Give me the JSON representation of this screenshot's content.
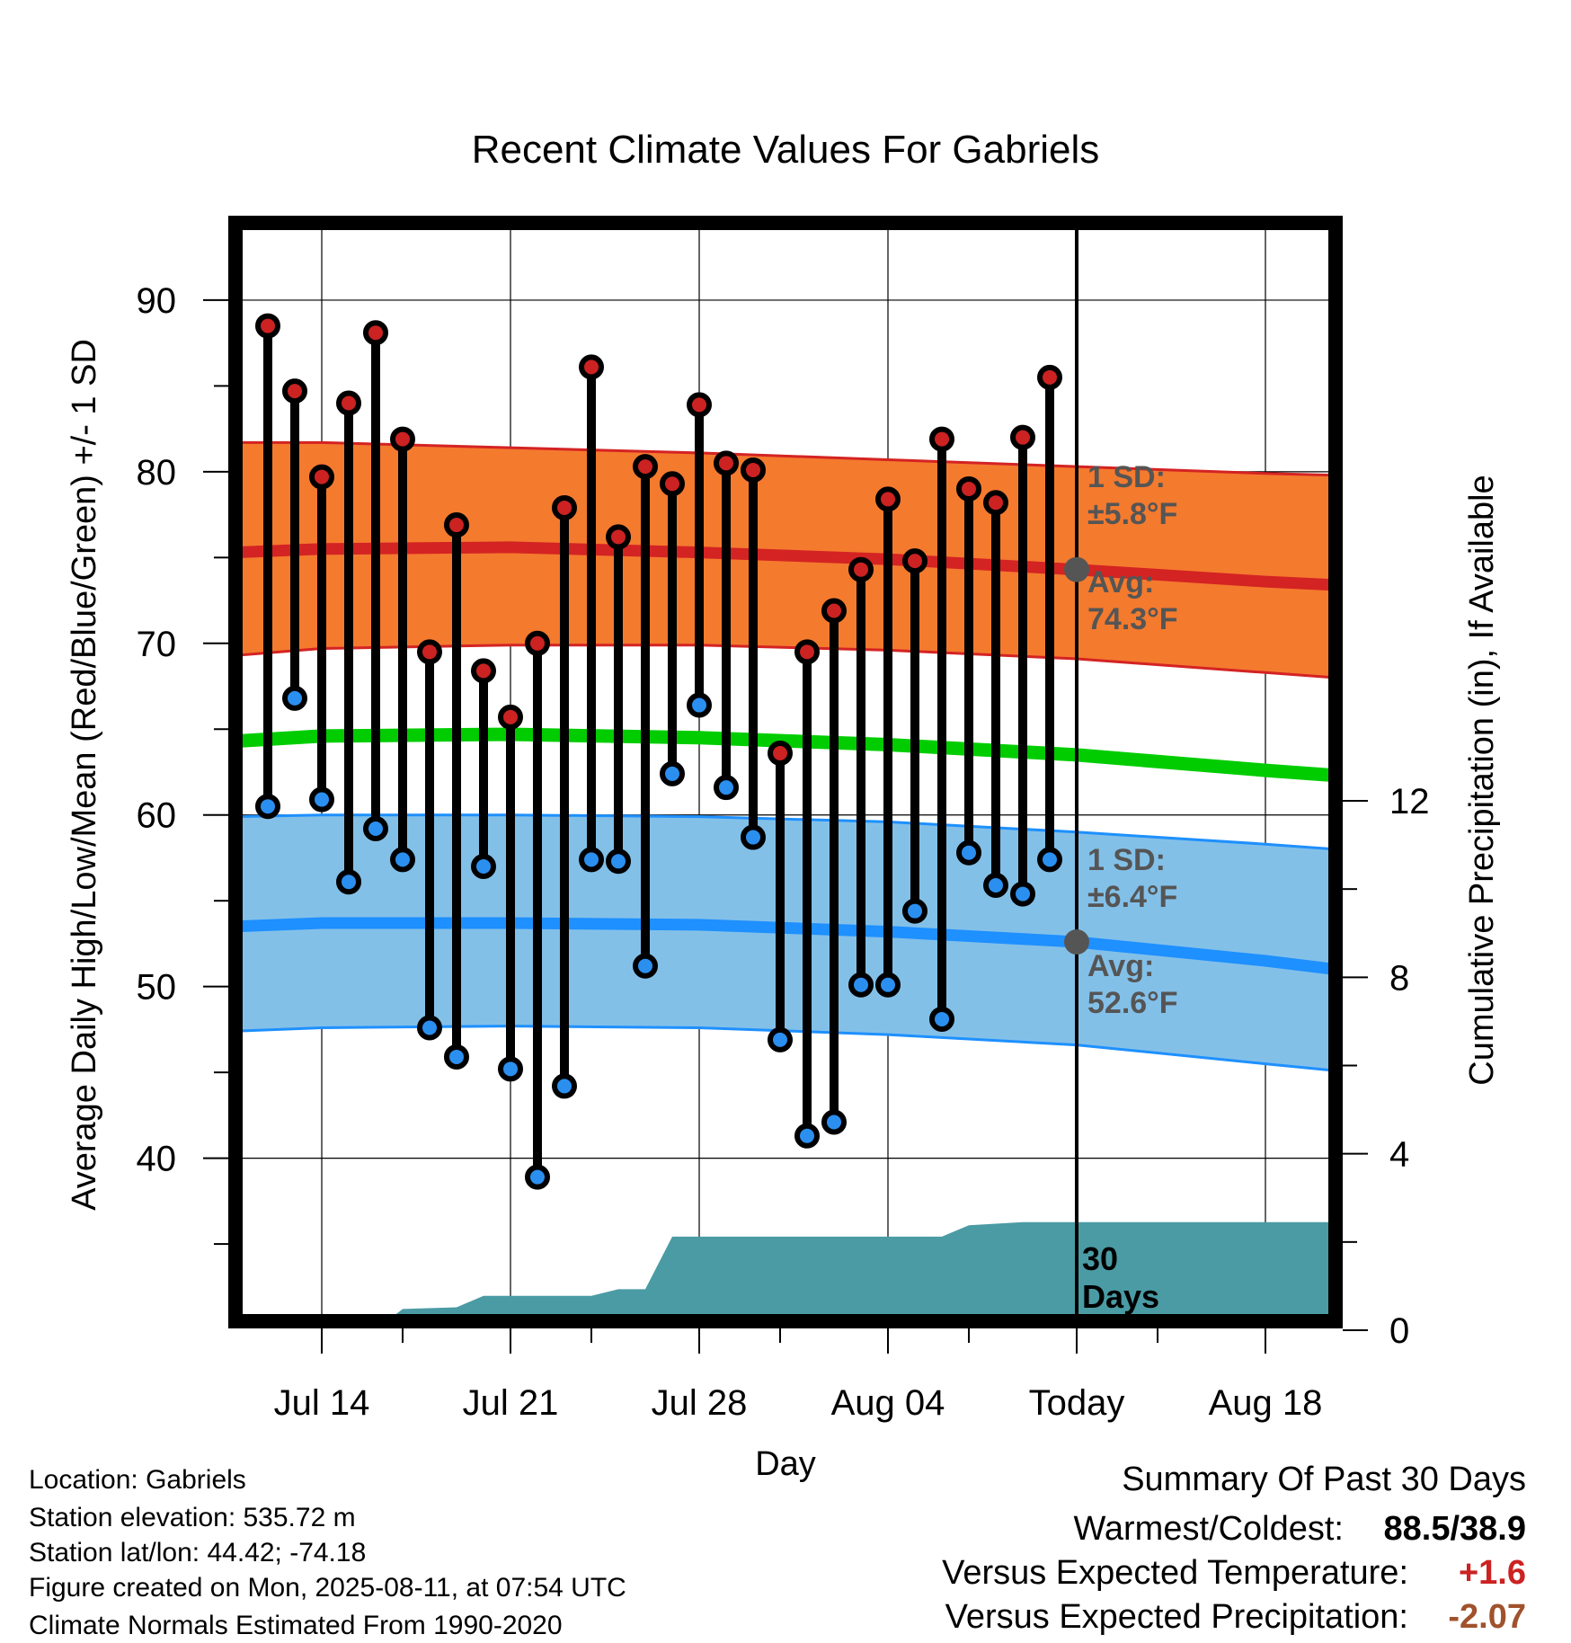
{
  "chart_data": {
    "type": "line",
    "title": "Recent Climate Values For Gabriels",
    "xlabel": "Day",
    "ylabel": "Average Daily High/Low/Mean (Red/Blue/Green) +/- 1 SD",
    "y2label": "Cumulative Precipitation (in), If Available",
    "ylim": [
      30.5,
      94.5
    ],
    "y2lim": [
      0,
      12
    ],
    "y_ticks": [
      "40",
      "50",
      "60",
      "70",
      "80",
      "90"
    ],
    "y2_ticks": [
      "0",
      "4",
      "8",
      "12"
    ],
    "x_ticks": [
      {
        "label": "Jul 14",
        "day": 0
      },
      {
        "label": "Jul 21",
        "day": 7
      },
      {
        "label": "Jul 28",
        "day": 14
      },
      {
        "label": "Aug 04",
        "day": 21
      },
      {
        "label": "Today",
        "day": 28
      },
      {
        "label": "Aug 18",
        "day": 35
      }
    ],
    "x_range_days": [
      -3.2,
      37.6
    ],
    "today_day": 28,
    "observed": {
      "days": [
        -2,
        -1,
        0,
        1,
        2,
        3,
        4,
        5,
        6,
        7,
        8,
        9,
        10,
        11,
        12,
        13,
        14,
        15,
        16,
        17,
        18,
        19,
        20,
        21,
        22,
        23,
        24,
        25,
        26,
        27
      ],
      "high": [
        88.5,
        84.7,
        79.7,
        84.0,
        88.1,
        81.9,
        69.5,
        76.9,
        68.4,
        65.7,
        70.0,
        77.9,
        86.1,
        76.2,
        80.3,
        79.3,
        83.9,
        80.5,
        80.1,
        63.6,
        69.5,
        71.9,
        74.3,
        78.4,
        74.8,
        81.9,
        79.0,
        78.2,
        82.0,
        85.5
      ],
      "low": [
        60.5,
        66.8,
        60.9,
        56.1,
        59.2,
        57.4,
        47.6,
        45.9,
        57.0,
        45.2,
        38.9,
        44.2,
        57.4,
        57.3,
        51.2,
        62.4,
        66.4,
        61.6,
        58.7,
        46.9,
        41.3,
        42.1,
        50.1,
        50.1,
        54.4,
        48.1,
        57.8,
        55.9,
        55.4,
        57.4
      ]
    },
    "normals": {
      "days": [
        -3.2,
        0,
        7,
        14,
        21,
        28,
        35,
        37.6
      ],
      "high_avg": [
        75.3,
        75.5,
        75.6,
        75.3,
        74.9,
        74.3,
        73.6,
        73.4
      ],
      "high_upper": [
        81.7,
        81.7,
        81.4,
        81.1,
        80.7,
        80.3,
        79.9,
        79.8
      ],
      "high_lower": [
        69.3,
        69.7,
        69.9,
        69.9,
        69.6,
        69.1,
        68.3,
        68.0
      ],
      "mean_avg": [
        64.3,
        64.6,
        64.7,
        64.5,
        64.1,
        63.5,
        62.6,
        62.3
      ],
      "low_avg": [
        53.5,
        53.7,
        53.7,
        53.6,
        53.2,
        52.6,
        51.5,
        51.0
      ],
      "low_upper": [
        59.9,
        60.0,
        60.0,
        59.9,
        59.6,
        59.0,
        58.3,
        58.0
      ],
      "low_lower": [
        47.4,
        47.6,
        47.7,
        47.6,
        47.2,
        46.6,
        45.5,
        45.1
      ]
    },
    "precip": {
      "days": [
        -3.2,
        2,
        3,
        5,
        6,
        8,
        10,
        11,
        12,
        13,
        14,
        16,
        18,
        20,
        22,
        23,
        24,
        26,
        28,
        37.6
      ],
      "cumulative": [
        0,
        0,
        0.48,
        0.52,
        0.78,
        0.78,
        0.78,
        0.93,
        0.93,
        2.12,
        2.12,
        2.12,
        2.12,
        2.12,
        2.12,
        2.12,
        2.38,
        2.45,
        2.45,
        2.45
      ]
    },
    "colors": {
      "high_band": "#f47a2e",
      "high_line": "#d42323",
      "low_band": "#83c0e8",
      "low_line": "#1e90ff",
      "mean_line": "#00cc00",
      "precip_fill": "#4a9ba4",
      "high_marker": "#cc2222",
      "low_marker": "#2b8ff0"
    },
    "annotations": {
      "high_sd_line1": "1 SD:",
      "high_sd_line2": "±5.8°F",
      "high_avg_line1": "Avg:",
      "high_avg_line2": "74.3°F",
      "low_sd_line1": "1 SD:",
      "low_sd_line2": "±6.4°F",
      "low_avg_line1": "Avg:",
      "low_avg_line2": "52.6°F",
      "days_line1": "30",
      "days_line2": "Days"
    }
  },
  "station": {
    "location": "Location: Gabriels",
    "elevation": "Station elevation: 535.72 m",
    "latlon": "Station lat/lon: 44.42; -74.18",
    "created": "Figure created on Mon, 2025-08-11, at 07:54 UTC",
    "normals": "Climate Normals Estimated From 1990-2020"
  },
  "summary": {
    "heading": "Summary Of Past 30 Days",
    "warm_cold_label": "Warmest/Coldest:",
    "warm_cold_value": "88.5/38.9",
    "temp_label": "Versus Expected Temperature:",
    "temp_value": "+1.6",
    "temp_color": "#cc2222",
    "precip_label": "Versus Expected Precipitation:",
    "precip_value": "-2.07",
    "precip_color": "#a0522d"
  }
}
